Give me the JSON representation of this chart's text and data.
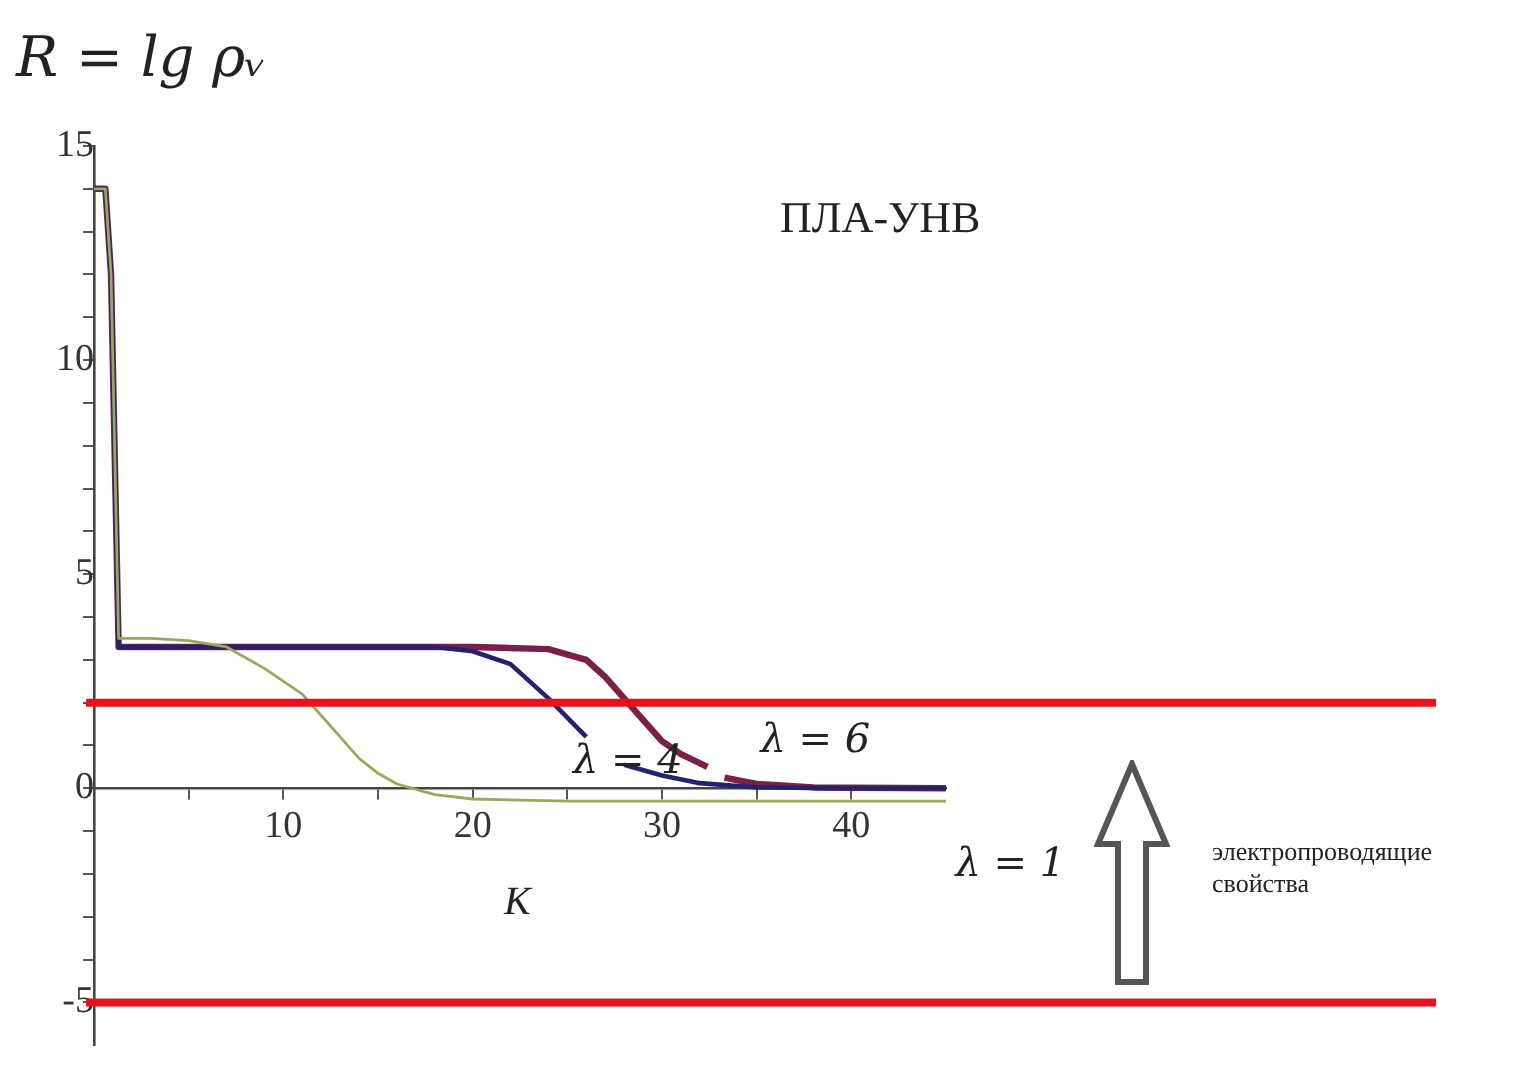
{
  "chart_data": {
    "type": "line",
    "title": "ПЛА-УНВ",
    "ylabel": "R = lg ρᵥ",
    "xlabel": "K",
    "annotations": [
      "электропроводящие свойства"
    ],
    "xlim": [
      0,
      45
    ],
    "xticks": [
      {
        "value": 5,
        "label": null
      },
      10,
      {
        "value": 15,
        "label": null
      },
      20,
      {
        "value": 25,
        "label": null
      },
      30,
      {
        "value": 35,
        "label": null
      },
      40
    ],
    "ylim": [
      -6,
      15
    ],
    "yticks": [
      -5,
      {
        "value": -4,
        "label": null
      },
      {
        "value": -3,
        "label": null
      },
      {
        "value": -2,
        "label": null
      },
      {
        "value": -1,
        "label": null
      },
      0,
      {
        "value": 1,
        "label": null
      },
      {
        "value": 2,
        "label": null
      },
      {
        "value": 3,
        "label": null
      },
      {
        "value": 4,
        "label": null
      },
      5,
      {
        "value": 6,
        "label": null
      },
      {
        "value": 7,
        "label": null
      },
      {
        "value": 8,
        "label": null
      },
      {
        "value": 9,
        "label": null
      },
      10,
      {
        "value": 11,
        "label": null
      },
      {
        "value": 12,
        "label": null
      },
      {
        "value": 13,
        "label": null
      },
      {
        "value": 14,
        "label": null
      },
      15
    ],
    "marker": "none",
    "line_style": "solid",
    "series": [
      {
        "name": "λ = 1",
        "color": "#9aa85a",
        "x": [
          0,
          0.6,
          0.9,
          1.3,
          3,
          5,
          7,
          9,
          11,
          12,
          13,
          14,
          15,
          16,
          18,
          20,
          25,
          45
        ],
        "values": [
          14,
          14,
          12,
          3.5,
          3.5,
          3.45,
          3.3,
          2.8,
          2.2,
          1.7,
          1.2,
          0.7,
          0.35,
          0.1,
          -0.15,
          -0.25,
          -0.3,
          -0.3
        ]
      },
      {
        "name": "λ = 4",
        "color": "#23226e",
        "x": [
          0,
          0.6,
          0.9,
          1.3,
          10,
          18,
          20,
          22,
          24,
          26,
          27,
          28,
          30,
          32,
          35,
          40,
          45
        ],
        "values": [
          14,
          14,
          12,
          3.3,
          3.3,
          3.3,
          3.2,
          2.9,
          2.1,
          1.2,
          null,
          0.55,
          0.3,
          0.12,
          0.02,
          0,
          0
        ]
      },
      {
        "name": "λ = 6",
        "color": "#7a2048",
        "x": [
          0,
          0.6,
          0.9,
          1.3,
          20,
          24,
          26,
          27,
          28,
          29,
          30,
          31,
          32.4,
          33,
          33.3,
          35,
          38,
          45
        ],
        "values": [
          14,
          14,
          12,
          3.3,
          3.3,
          3.25,
          3,
          2.6,
          2.1,
          1.6,
          1.1,
          0.8,
          0.5,
          null,
          0.25,
          0.1,
          0.02,
          0
        ]
      }
    ],
    "ref_lines": [
      {
        "axis": "y",
        "value": 2,
        "color": "#e8121c"
      },
      {
        "axis": "y",
        "value": -5,
        "color": "#e8121c"
      }
    ]
  }
}
